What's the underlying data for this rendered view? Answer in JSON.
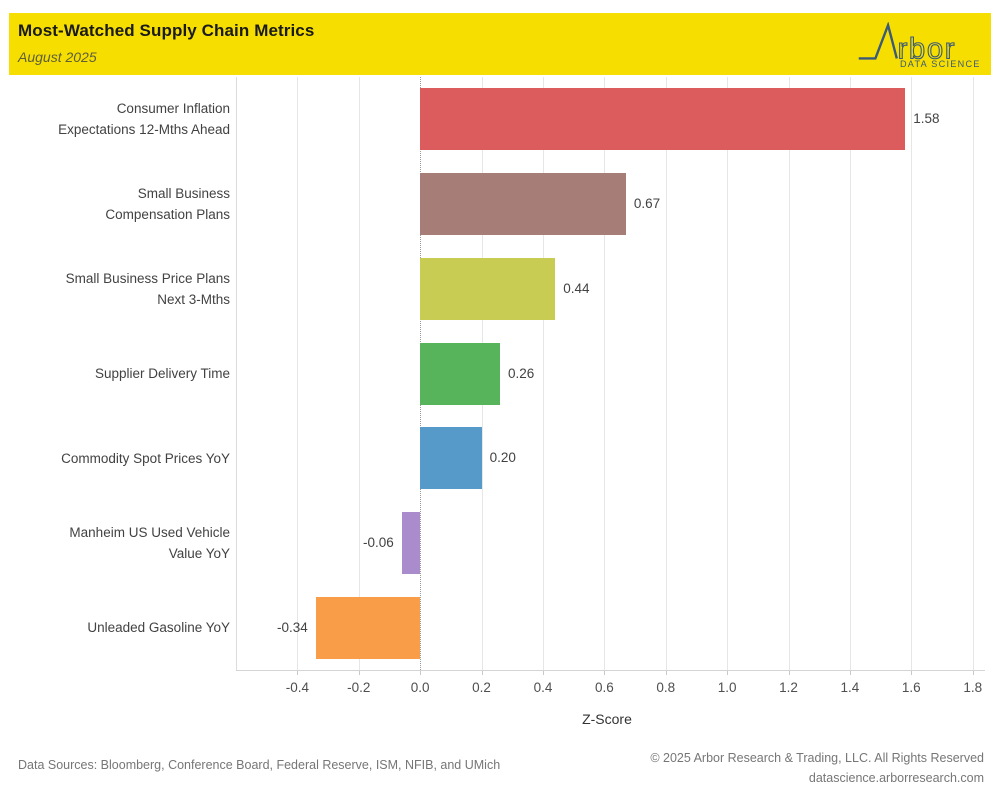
{
  "header": {
    "title": "Most-Watched Supply Chain Metrics",
    "subtitle": "August 2025",
    "banner_color": "#F6DF00",
    "logo": {
      "brand_text": "rbor",
      "tagline": "DATA SCIENCE",
      "color": "#3A5A78"
    }
  },
  "chart_data": {
    "type": "bar",
    "orientation": "horizontal",
    "title": "Most-Watched Supply Chain Metrics",
    "subtitle": "August 2025",
    "categories": [
      [
        "Consumer Inflation",
        "Expectations 12-Mths Ahead"
      ],
      [
        "Small Business",
        "Compensation Plans"
      ],
      [
        "Small Business Price Plans",
        "Next 3-Mths"
      ],
      [
        "Supplier Delivery Time"
      ],
      [
        "Commodity Spot Prices YoY"
      ],
      [
        "Manheim US Used Vehicle",
        "Value YoY"
      ],
      [
        "Unleaded Gasoline YoY"
      ]
    ],
    "values": [
      1.58,
      0.67,
      0.44,
      0.26,
      0.2,
      -0.06,
      -0.34
    ],
    "value_labels": [
      "1.58",
      "0.67",
      "0.44",
      "0.26",
      "0.20",
      "-0.06",
      "-0.34"
    ],
    "bar_colors": [
      "#DC5B5D",
      "#A67E77",
      "#C9CC53",
      "#58B45A",
      "#559AC8",
      "#AA8CCC",
      "#FA9D49"
    ],
    "xlabel": "Z-Score",
    "xticks": [
      "-0.4",
      "-0.2",
      "0.0",
      "0.2",
      "0.4",
      "0.6",
      "0.8",
      "1.0",
      "1.2",
      "1.4",
      "1.6",
      "1.8"
    ],
    "xtick_values": [
      -0.4,
      -0.2,
      0.0,
      0.2,
      0.4,
      0.6,
      0.8,
      1.0,
      1.2,
      1.4,
      1.6,
      1.8
    ],
    "xlim": [
      -0.6,
      1.84
    ],
    "grid": true,
    "zero_line_style": "dotted",
    "legend": "none"
  },
  "footer": {
    "data_sources": "Data Sources: Bloomberg, Conference Board, Federal Reserve, ISM, NFIB, and UMich",
    "copyright": "© 2025 Arbor Research & Trading, LLC. All Rights Reserved",
    "website": "datascience.arborresearch.com"
  }
}
